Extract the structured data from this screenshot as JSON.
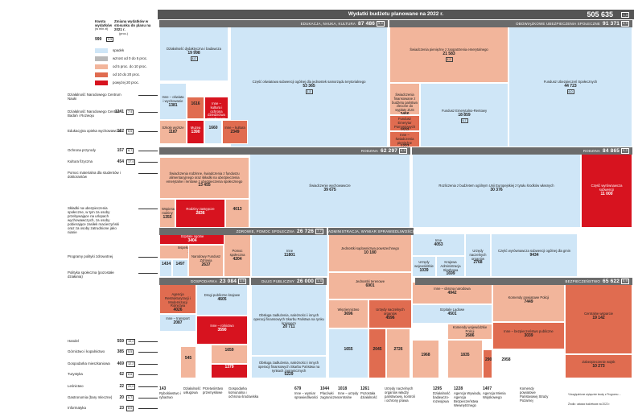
{
  "chart_data": {
    "type": "treemap",
    "title": "Wydatki budżetu planowane na 2022 r.",
    "total": {
      "value": "505 635",
      "change": "1,3"
    },
    "legend": {
      "amount_header": "Kwota wydatków",
      "amount_unit": "(w mln zł)",
      "change_header": "Zmiana wydatków w stosunku do planu na 2021 r.",
      "change_unit": "(proc.)",
      "example_value": "999",
      "example_change": "5,5",
      "items": [
        {
          "label": "spadek",
          "color": "#cfe6f7"
        },
        {
          "label": "wzrost od 0 do 5 proc.",
          "color": "#b9b9b9"
        },
        {
          "label": "od 5 proc. do 10 proc.",
          "color": "#f2b59b"
        },
        {
          "label": "od 10 do 20 proc.",
          "color": "#e06c50"
        },
        {
          "label": "powyżej 20 proc.",
          "color": "#d7131f"
        }
      ]
    },
    "sections": [
      {
        "name": "EDUKACJA, NAUKA, KULTURA",
        "value": "87 486",
        "change": "5,0"
      },
      {
        "name": "OBOWIĄZKOWE UBEZPIECZENIA SPOŁECZNE",
        "value": "91 371",
        "change": "4,9"
      },
      {
        "name": "RODZINA",
        "value": "62 297",
        "change": "6,9"
      },
      {
        "name": "RODZINA",
        "value": "84 865",
        "change": "5,2"
      },
      {
        "name": "ZDROWIE, POMOC SPOŁECZNA",
        "value": "26 726",
        "change": "7,7"
      },
      {
        "name": "ADMINISTRACJA, WYMIAR SPRAWIEDLIWOŚCI",
        "value": "38 185",
        "change": "6,5"
      },
      {
        "name": "GOSPODARKA",
        "value": "23 084",
        "change": "3,5"
      },
      {
        "name": "DŁUG PUBLICZNY",
        "value": "26 000",
        "change": "1,4"
      },
      {
        "name": "BEZPIECZEŃSTWO",
        "value": "65 622",
        "change": "5,9"
      }
    ],
    "tiles": [
      {
        "label": "Działalność dydaktyczna i badawcza",
        "value": "19 998",
        "change": "4,0",
        "color": "#cfe6f7"
      },
      {
        "label": "Część oświatowa subwencji ogólnej dla jednostek samorządu terytorialnego",
        "value": "53 365",
        "change": "1,5",
        "color": "#cfe6f7"
      },
      {
        "label": "Inne – oświata i wychowanie",
        "value": "1381",
        "change": "",
        "color": "#cfe6f7"
      },
      {
        "label": "",
        "value": "1616",
        "change": "",
        "color": "#e06c50"
      },
      {
        "label": "Inne – kultura i ochrona dziedzictwa narodowego",
        "value": "2807",
        "change": "",
        "color": "#d7131f"
      },
      {
        "label": "Szkoły wyższe",
        "value": "1187",
        "change": "",
        "color": "#f2b59b"
      },
      {
        "label": "Muzea",
        "value": "1390",
        "change": "",
        "color": "#d7131f"
      },
      {
        "label": "",
        "value": "1660",
        "change": "",
        "color": "#cfe6f7"
      },
      {
        "label": "Inne – kultura",
        "value": "2349",
        "change": "",
        "color": "#e06c50"
      },
      {
        "label": "Świadczenia pieniężne z zaopatrzenia emerytalnego",
        "value": "21 583",
        "change": "4,9",
        "color": "#f2b59b"
      },
      {
        "label": "Świadczenia finansowane z budżetu państwa zlecone do wypłaty ZUS",
        "value": "3466",
        "change": "",
        "color": "#f2b59b"
      },
      {
        "label": "Fundusz Emerytur Pomostowych",
        "value": "1532",
        "change": "",
        "color": "#e06c50"
      },
      {
        "label": "Inne – świadczenia pieniężne",
        "value": "1227",
        "change": "",
        "color": "#e06c50"
      },
      {
        "label": "Fundusz Emerytalno-Rentowy",
        "value": "18 859",
        "change": "5,7",
        "color": "#cfe6f7"
      },
      {
        "label": "Fundusz Ubezpieczeń Społecznych",
        "value": "44 723",
        "change": "6,0",
        "color": "#cfe6f7"
      },
      {
        "label": "Świadczenia rodzinne, świadczenia z funduszu alimentacyjnego oraz składki na ubezpieczenia emerytalne i rentowe z ubezpieczenia społecznego",
        "value": "13 455",
        "change": "",
        "color": "#f2b59b"
      },
      {
        "label": "Wspieranie rodziny",
        "value": "1355",
        "change": "",
        "color": "#f2b59b"
      },
      {
        "label": "Rodziny zastępcze",
        "value": "2836",
        "change": "",
        "color": "#d7131f"
      },
      {
        "label": "",
        "value": "4013",
        "change": "",
        "color": "#f2b59b"
      },
      {
        "label": "Świadczenie wychowawcze",
        "value": "39 675",
        "change": "",
        "color": "#cfe6f7"
      },
      {
        "label": "Rozliczenia z budżetem ogólnym Unii Europejskiej z tytułu środków własnych",
        "value": "30 376",
        "change": "",
        "color": "#cfe6f7"
      },
      {
        "label": "Część wyrównawcza subwencji",
        "value": "11 000",
        "change": "",
        "color": "#d7131f"
      },
      {
        "label": "Inne",
        "value": "53 453",
        "change": "",
        "color": "#d7131f"
      },
      {
        "label": "Szpitale ogólne",
        "value": "3404",
        "change": "",
        "color": "#d7131f"
      },
      {
        "label": "Inspekcja Sanitarna",
        "value": "1766",
        "change": "",
        "color": "#f2b59b"
      },
      {
        "label": "",
        "value": "1434",
        "change": "",
        "color": "#cfe6f7"
      },
      {
        "label": "",
        "value": "1497",
        "change": "",
        "color": "#cfe6f7"
      },
      {
        "label": "Narodowy Fundusz Zdrowia",
        "value": "2637",
        "change": "",
        "color": "#f2b59b"
      },
      {
        "label": "Pomoc społeczna",
        "value": "4204",
        "change": "",
        "color": "#f2b59b"
      },
      {
        "label": "Inne",
        "value": "11801",
        "change": "",
        "color": "#cfe6f7"
      },
      {
        "label": "Jednostki sądownictwa powszechnego",
        "value": "10 180",
        "change": "",
        "color": "#f2b59b"
      },
      {
        "label": "Inne",
        "value": "4053",
        "change": "",
        "color": "#cfe6f7"
      },
      {
        "label": "Urzędy wojewódzkie",
        "value": "1039",
        "change": "",
        "color": "#cfe6f7"
      },
      {
        "label": "Krajowa Administracja Skarbowa",
        "value": "1699",
        "change": "",
        "color": "#cfe6f7"
      },
      {
        "label": "Urzędy naczelnych organów",
        "value": "2768",
        "change": "",
        "color": "#cfe6f7"
      },
      {
        "label": "Część wyrównawcza subwencji ogólnej dla gmin",
        "value": "9434",
        "change": "",
        "color": "#cfe6f7"
      },
      {
        "label": "Jednostki terenowe",
        "value": "6901",
        "change": "",
        "color": "#f2b59b"
      },
      {
        "label": "Więziennictwo",
        "value": "3696",
        "change": "",
        "color": "#f2b59b"
      },
      {
        "label": "Urzędy naczelnych organów",
        "value": "4596",
        "change": "",
        "color": "#e06c50"
      },
      {
        "label": "Inne – obrona narodowa",
        "value": "4942",
        "change": "",
        "color": "#f2b59b"
      },
      {
        "label": "Komendy powiatowe Policji",
        "value": "7449",
        "change": "",
        "color": "#f2b59b"
      },
      {
        "label": "Centralne wsparcie",
        "value": "19 142",
        "change": "",
        "color": "#e06c50"
      },
      {
        "label": "Szpitale Lądowe",
        "value": "4501",
        "change": "",
        "color": "#cfe6f7"
      },
      {
        "label": "Komendy wojewódzkie Policji",
        "value": "2686",
        "change": "",
        "color": "#f2b59b"
      },
      {
        "label": "Inne – bezpieczeństwo publiczne",
        "value": "3039",
        "change": "",
        "color": "#e06c50"
      },
      {
        "label": "Zabezpieczenie wojsk",
        "value": "10 273",
        "change": "",
        "color": "#e06c50"
      },
      {
        "label": "",
        "value": "2958",
        "change": "",
        "color": "#ffffff"
      },
      {
        "label": "Obsługa zadłużenia, należności i innych operacji finansowych Skarbu Państwa na rynku krajowym",
        "value": "20 711",
        "change": "",
        "color": "#cfe6f7"
      },
      {
        "label": "Obsługa zadłużenia, należności i innych operacji finansowych Skarbu Państwa na rynkach zagranicznych",
        "value": "5229",
        "change": "",
        "color": "#cfe6f7"
      },
      {
        "label": "Agencja Restrukturyzacji i Modernizacji Rolnictwa",
        "value": "4026",
        "change": "",
        "color": "#e06c50"
      },
      {
        "label": "Drogi publiczne krajowe",
        "value": "4605",
        "change": "",
        "color": "#cfe6f7"
      },
      {
        "label": "Inne – transport",
        "value": "2087",
        "change": "",
        "color": "#cfe6f7"
      },
      {
        "label": "Inne – rolnictwo",
        "value": "3590",
        "change": "",
        "color": "#d7131f"
      },
      {
        "label": "",
        "value": "1659",
        "change": "",
        "color": "#f2b59b"
      },
      {
        "label": "",
        "value": "1379",
        "change": "",
        "color": "#d7131f"
      },
      {
        "label": "",
        "value": "545",
        "change": "",
        "color": "#f2b59b"
      },
      {
        "label": "",
        "value": "1655",
        "change": "",
        "color": "#cfe6f7"
      },
      {
        "label": "",
        "value": "2045",
        "change": "",
        "color": "#e06c50"
      },
      {
        "label": "",
        "value": "2726",
        "change": "",
        "color": "#f2b59b"
      },
      {
        "label": "",
        "value": "1968",
        "change": "",
        "color": "#f2b59b"
      },
      {
        "label": "",
        "value": "1835",
        "change": "",
        "color": "#f2b59b"
      },
      {
        "label": "",
        "value": "2901",
        "change": "",
        "color": "#e06c50"
      }
    ],
    "side_labels": [
      {
        "label": "Działalność Narodowego Centrum Nauki",
        "value": "",
        "change": ""
      },
      {
        "label": "Działalność Narodowego Centrum Badań i Rozwoju",
        "value": "1241",
        "change": "7,4"
      },
      {
        "label": "Edukacyjna opieka wychowawcza",
        "value": "162",
        "change": "6,6"
      },
      {
        "label": "Ochrona przyrody",
        "value": "157",
        "change": "8,7"
      },
      {
        "label": "Kultura fizyczna",
        "value": "454",
        "change": "17,4"
      },
      {
        "label": "Pomoc materialna dla studentów i doktorantów",
        "value": "",
        "change": ""
      },
      {
        "label": "Składki na ubezpieczenia społeczne, w tym za osoby przebywające na urlopach wychowawczych, za osoby pobierające zasiłek macierzyński oraz za osoby zatrudnione jako nianie",
        "value": "",
        "change": ""
      },
      {
        "label": "Programy polityki zdrowotnej",
        "value": "",
        "change": ""
      },
      {
        "label": "Polityka społeczna (pozostałe działania)",
        "value": "",
        "change": ""
      },
      {
        "label": "Handel",
        "value": "559",
        "change": "15,2"
      },
      {
        "label": "Górnictwo i kopalnictwo",
        "value": "385",
        "change": "5,5"
      },
      {
        "label": "Gospodarka mieszkaniowa",
        "value": "469",
        "change": "12,2"
      },
      {
        "label": "Turystyka",
        "value": "62",
        "change": "8,6"
      },
      {
        "label": "Leśnictwo",
        "value": "22",
        "value2": "",
        "change": "20,0"
      },
      {
        "label": "Gastronomia (bary mleczne)",
        "value": "20",
        "change": "0,7"
      },
      {
        "label": "Informatyka",
        "value": "23",
        "change": "8,0"
      }
    ],
    "bottom_labels": [
      {
        "label": "Rybołówstwo i rybactwo",
        "value": "143",
        "change": ""
      },
      {
        "label": "Działalność usługowa",
        "value": "",
        "change": ""
      },
      {
        "label": "Przetwórstwo przemysłowe",
        "value": "",
        "change": ""
      },
      {
        "label": "Gospodarka komunalna i ochrona środowiska",
        "value": "",
        "change": ""
      },
      {
        "label": "Inne – wymiar sprawiedliwości",
        "value": "679",
        "change": ""
      },
      {
        "label": "Placówki zagraniczne",
        "value": "1044",
        "change": ""
      },
      {
        "label": "Inne – urzędy centralne",
        "value": "1018",
        "change": ""
      },
      {
        "label": "Pozostała działalność",
        "value": "1261",
        "change": ""
      },
      {
        "label": "Urzędy naczelnych organów władzy państwowej, kontroli i ochrony prawa",
        "value": "",
        "change": ""
      },
      {
        "label": "Działalność badawczo-rozwojowa",
        "value": "1295",
        "change": ""
      },
      {
        "label": "Agencja Wywiadu, Agencja Bezpieczeństwa Wewnętrznego",
        "value": "1228",
        "change": ""
      },
      {
        "label": "Agencja Mienia Wojskowego",
        "value": "1407",
        "change": ""
      },
      {
        "label": "Komendy powiatowe Państwowej Straży Pożarnej",
        "value": "",
        "change": ""
      }
    ],
    "notes": [
      "*Uwzględnione wyłącznie kwoty z Programu ...",
      "Źródło: ustawa budżetowa na 2022 r."
    ]
  }
}
